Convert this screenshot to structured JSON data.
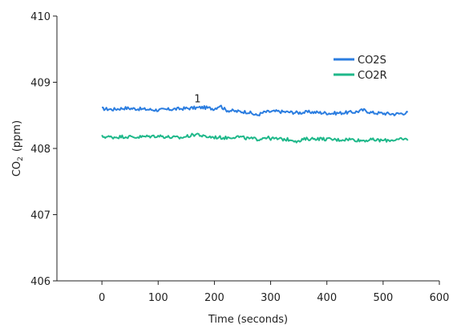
{
  "chart_data": {
    "type": "line",
    "title": "",
    "xlabel": "Time (seconds)",
    "ylabel_main": "CO",
    "ylabel_sub": "2",
    "ylabel_unit": "(ppm)",
    "xlim": [
      -80,
      600
    ],
    "ylim": [
      406,
      410
    ],
    "xticks": [
      0,
      100,
      200,
      300,
      400,
      500,
      600
    ],
    "yticks": [
      406,
      407,
      408,
      409,
      410
    ],
    "grid": false,
    "legend_position": "top-right",
    "annotation": {
      "text": "1",
      "x": 170,
      "y": 408.7
    },
    "series": [
      {
        "name": "CO2S",
        "color": "#2b7de0",
        "x": [
          0,
          20,
          40,
          60,
          80,
          100,
          120,
          140,
          160,
          180,
          200,
          210,
          220,
          240,
          260,
          275,
          290,
          310,
          330,
          350,
          370,
          390,
          410,
          430,
          450,
          465,
          480,
          500,
          520,
          545
        ],
        "y": [
          408.6,
          408.59,
          408.61,
          408.6,
          408.59,
          408.58,
          408.59,
          408.6,
          408.61,
          408.62,
          408.6,
          408.65,
          408.58,
          408.56,
          408.55,
          408.5,
          408.55,
          408.56,
          408.55,
          408.54,
          408.55,
          408.54,
          408.53,
          408.54,
          408.55,
          408.58,
          408.54,
          408.53,
          408.52,
          408.54
        ]
      },
      {
        "name": "CO2R",
        "color": "#1fb88a",
        "x": [
          0,
          20,
          40,
          60,
          80,
          100,
          120,
          140,
          160,
          170,
          180,
          200,
          220,
          240,
          260,
          280,
          290,
          300,
          320,
          340,
          350,
          360,
          380,
          400,
          420,
          440,
          460,
          480,
          500,
          520,
          545
        ],
        "y": [
          408.18,
          408.17,
          408.18,
          408.17,
          408.18,
          408.19,
          408.17,
          408.16,
          408.2,
          408.22,
          408.18,
          408.17,
          408.16,
          408.18,
          408.15,
          408.14,
          408.17,
          408.15,
          408.14,
          408.13,
          408.1,
          408.14,
          408.15,
          408.14,
          408.13,
          408.14,
          408.12,
          408.13,
          408.12,
          408.13,
          408.14
        ]
      }
    ]
  }
}
